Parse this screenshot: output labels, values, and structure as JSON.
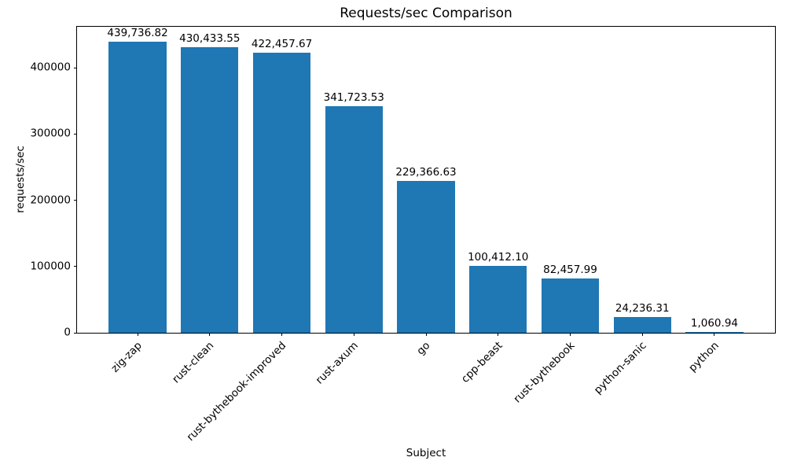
{
  "chart_data": {
    "type": "bar",
    "title": "Requests/sec Comparison",
    "xlabel": "Subject",
    "ylabel": "requests/sec",
    "categories": [
      "zig-zap",
      "rust-clean",
      "rust-bythebook-improved",
      "rust-axum",
      "go",
      "cpp-beast",
      "rust-bythebook",
      "python-sanic",
      "python"
    ],
    "values": [
      439736.82,
      430433.55,
      422457.67,
      341723.53,
      229366.63,
      100412.1,
      82457.99,
      24236.31,
      1060.94
    ],
    "bar_labels": [
      "439,736.82",
      "430,433.55",
      "422,457.67",
      "341,723.53",
      "229,366.63",
      "100,412.10",
      "82,457.99",
      "24,236.31",
      "1,060.94"
    ],
    "yticks": [
      0,
      100000,
      200000,
      300000,
      400000
    ],
    "ytick_labels": [
      "0",
      "100000",
      "200000",
      "300000",
      "400000"
    ],
    "ylim": [
      0,
      461723.66
    ],
    "bar_color": "#1f77b4",
    "grid": false,
    "legend": null,
    "x_label_rotation_deg": 45
  }
}
